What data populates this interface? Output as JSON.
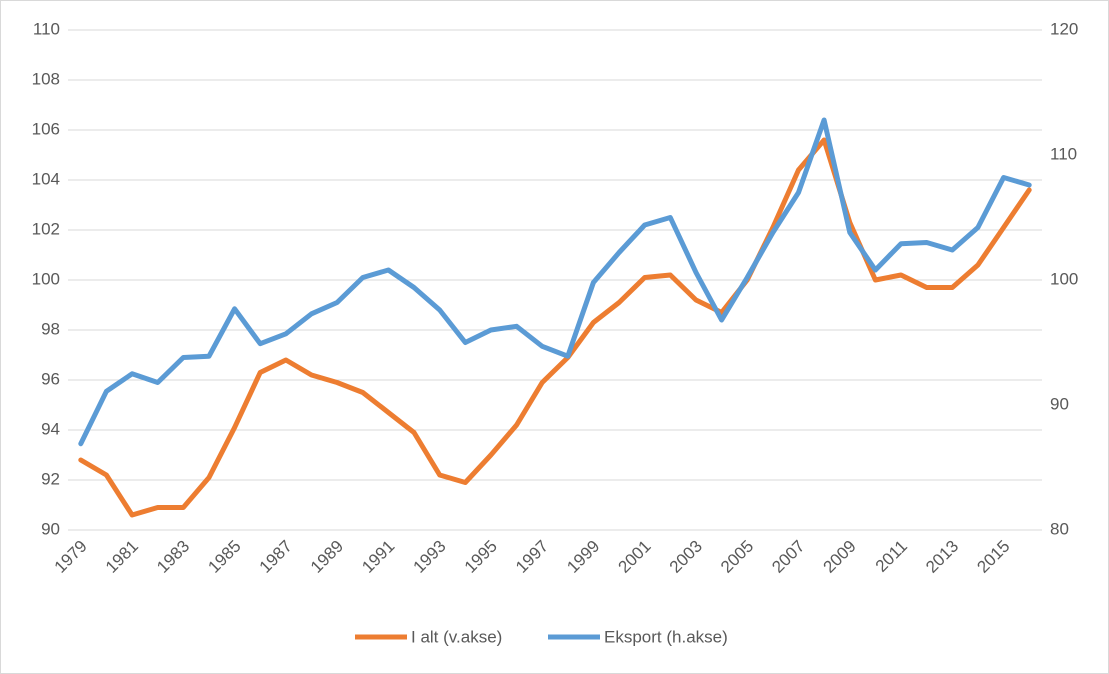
{
  "chart_data": {
    "type": "line",
    "categories": [
      "1979",
      null,
      "1981",
      null,
      "1983",
      null,
      "1985",
      null,
      "1987",
      null,
      "1989",
      null,
      "1991",
      null,
      "1993",
      null,
      "1995",
      null,
      "1997",
      null,
      "1999",
      null,
      "2001",
      null,
      "2003",
      null,
      "2005",
      null,
      "2007",
      null,
      "2009",
      null,
      "2011",
      null,
      "2013",
      null,
      "2015",
      null
    ],
    "ylim": [
      90,
      110
    ],
    "yticks": [
      90,
      92,
      94,
      96,
      98,
      100,
      102,
      104,
      106,
      108,
      110
    ],
    "y2lim": [
      80,
      120
    ],
    "y2ticks": [
      80,
      90,
      100,
      110,
      120
    ],
    "grid": true,
    "legend": "bottom",
    "series": [
      {
        "name": "I alt (v.akse)",
        "color": "#ed7d31",
        "values": [
          92.8,
          92.2,
          90.6,
          90.9,
          90.9,
          92.1,
          94.1,
          96.3,
          96.8,
          96.2,
          95.9,
          95.5,
          94.7,
          93.9,
          92.2,
          91.9,
          93.0,
          94.2,
          95.9,
          96.9,
          98.3,
          99.1,
          100.1,
          100.2,
          99.2,
          98.7,
          100.0,
          102.1,
          104.4,
          105.6,
          102.3,
          100.0,
          100.2,
          99.7,
          99.7,
          100.6,
          102.1,
          103.6
        ]
      },
      {
        "name": "Eksport (h.akse)",
        "color": "#5b9bd5",
        "axis": "y2",
        "values": [
          86.9,
          91.1,
          92.5,
          91.8,
          93.8,
          93.9,
          97.7,
          94.9,
          95.7,
          97.3,
          98.2,
          100.2,
          100.8,
          99.4,
          97.6,
          95.0,
          96.0,
          96.3,
          94.7,
          93.9,
          99.8,
          102.2,
          104.4,
          105.0,
          100.6,
          96.8,
          100.2,
          103.8,
          107.0,
          112.8,
          103.8,
          100.8,
          102.9,
          103.0,
          102.4,
          104.2,
          108.2,
          107.6
        ]
      }
    ]
  }
}
